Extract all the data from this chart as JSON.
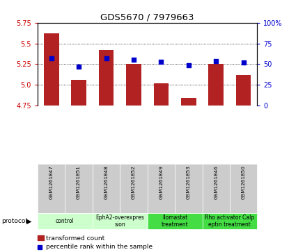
{
  "title": "GDS5670 / 7979663",
  "samples": [
    "GSM1261847",
    "GSM1261851",
    "GSM1261848",
    "GSM1261852",
    "GSM1261849",
    "GSM1261853",
    "GSM1261846",
    "GSM1261850"
  ],
  "bar_values": [
    5.62,
    5.06,
    5.42,
    5.25,
    5.02,
    4.84,
    5.25,
    5.12
  ],
  "percentile_values": [
    57,
    47,
    57,
    55,
    53,
    49,
    54,
    52
  ],
  "ylim_left": [
    4.75,
    5.75
  ],
  "ylim_right": [
    0,
    100
  ],
  "yticks_left": [
    4.75,
    5.0,
    5.25,
    5.5,
    5.75
  ],
  "yticks_right": [
    0,
    25,
    50,
    75,
    100
  ],
  "bar_color": "#B22222",
  "dot_color": "#0000CC",
  "bar_bottom": 4.75,
  "protocols": [
    {
      "label": "control",
      "cols": [
        0,
        1
      ],
      "color": "#ccffcc"
    },
    {
      "label": "EphA2-overexpres\nsion",
      "cols": [
        2,
        3
      ],
      "color": "#ccffcc"
    },
    {
      "label": "Ilomastat\ntreatment",
      "cols": [
        4,
        5
      ],
      "color": "#44dd44"
    },
    {
      "label": "Rho activator Calp\neptin treatment",
      "cols": [
        6,
        7
      ],
      "color": "#44dd44"
    }
  ],
  "grid_color": "#000000",
  "background_color": "#ffffff",
  "sample_box_color": "#cccccc",
  "legend_red_label": "transformed count",
  "legend_blue_label": "percentile rank within the sample",
  "protocol_label": "protocol",
  "left_axis_color": "#CC0000",
  "right_axis_color": "#0000CC"
}
